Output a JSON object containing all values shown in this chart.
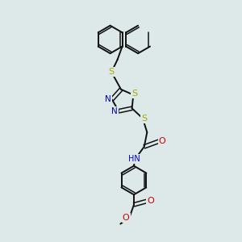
{
  "bg_color": "#dde8e8",
  "bond_color": "#111111",
  "S_color": "#aaaa00",
  "N_color": "#0000cc",
  "O_color": "#cc0000",
  "figsize": [
    3.0,
    3.0
  ],
  "dpi": 100,
  "xlim": [
    0,
    10
  ],
  "ylim": [
    0,
    10
  ]
}
